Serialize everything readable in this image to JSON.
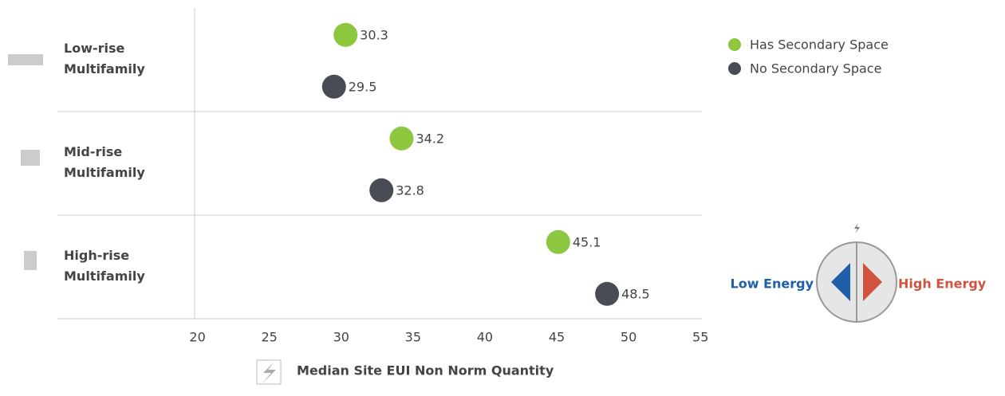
{
  "chart_data": {
    "type": "dot",
    "categories": [
      "Low-rise Multifamily",
      "Mid-rise Multifamily",
      "High-rise Multifamily"
    ],
    "series": [
      {
        "name": "Has Secondary Space",
        "color": "#8dc63f",
        "values": [
          30.3,
          34.2,
          45.1
        ]
      },
      {
        "name": "No Secondary Space",
        "color": "#474c55",
        "values": [
          29.5,
          32.8,
          48.5
        ]
      }
    ],
    "xlim": [
      19.8,
      55.1
    ],
    "xticks": [
      20,
      25,
      30,
      35,
      40,
      45,
      50,
      55
    ],
    "xlabel": "Median Site EUI Non Norm Quantity",
    "legend": "top-right",
    "energy_scale": {
      "low": "Low Energy",
      "high": "High Energy"
    }
  }
}
